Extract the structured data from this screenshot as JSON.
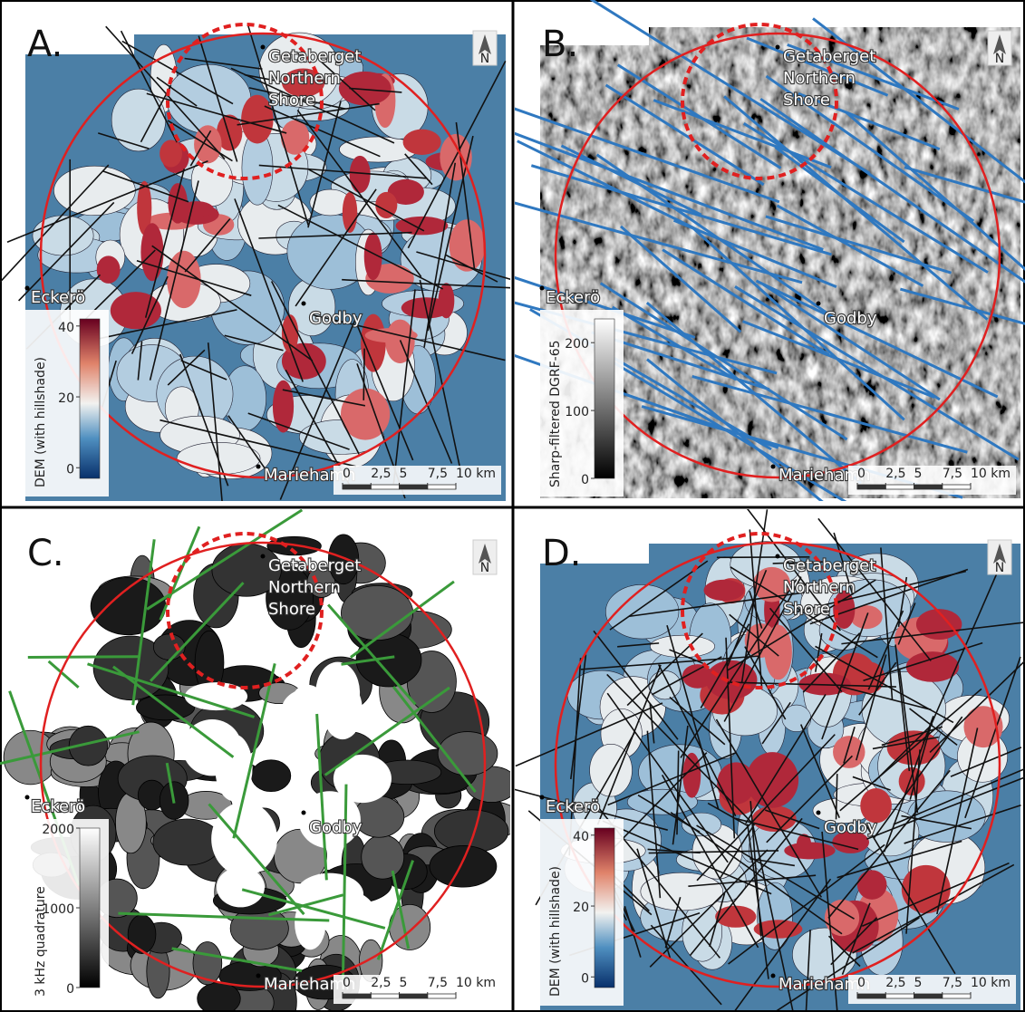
{
  "panels": [
    {
      "letter": "A.",
      "north": "N",
      "places": [
        {
          "lines": [
            "Getaberget",
            "Northern",
            "Shore"
          ]
        },
        {
          "lines": [
            "Eckerö"
          ]
        },
        {
          "lines": [
            "Godby"
          ]
        },
        {
          "lines": [
            "Mariehamn"
          ]
        }
      ],
      "colorbar": {
        "label": "DEM (with hillshade)",
        "lim": [
          -3,
          42
        ],
        "ticks": [
          0,
          20,
          40
        ]
      },
      "scale_bar": {
        "ticks": [
          0,
          {
            "value": 2.5,
            "label": "2,5"
          },
          5,
          {
            "value": 7.5,
            "label": "7,5"
          },
          {
            "value": 10,
            "label": "10 km"
          }
        ]
      }
    },
    {
      "letter": "B.",
      "north": "N",
      "places": [
        {
          "lines": [
            "Getaberget",
            "Northern",
            "Shore"
          ]
        },
        {
          "lines": [
            "Eckerö"
          ]
        },
        {
          "lines": [
            "Godby"
          ]
        },
        {
          "lines": [
            "Mariehamn"
          ]
        }
      ],
      "colorbar": {
        "label": "Sharp-filtered DGRF-65",
        "lim": [
          0,
          235
        ],
        "ticks": [
          0,
          100,
          200
        ]
      },
      "scale_bar": {
        "ticks": [
          0,
          {
            "value": 2.5,
            "label": "2,5"
          },
          5,
          {
            "value": 7.5,
            "label": "7,5"
          },
          {
            "value": 10,
            "label": "10 km"
          }
        ]
      }
    },
    {
      "letter": "C.",
      "north": "N",
      "places": [
        {
          "lines": [
            "Getaberget",
            "Northern",
            "Shore"
          ]
        },
        {
          "lines": [
            "Eckerö"
          ]
        },
        {
          "lines": [
            "Godby"
          ]
        },
        {
          "lines": [
            "Mariehamn"
          ]
        }
      ],
      "colorbar": {
        "label": "3 kHz quadrature",
        "lim": [
          0,
          2000
        ],
        "ticks": [
          0,
          1000,
          2000
        ]
      },
      "scale_bar": {
        "ticks": [
          0,
          {
            "value": 2.5,
            "label": "2,5"
          },
          5,
          {
            "value": 7.5,
            "label": "7,5"
          },
          {
            "value": 10,
            "label": "10 km"
          }
        ]
      }
    },
    {
      "letter": "D.",
      "north": "N",
      "places": [
        {
          "lines": [
            "Getaberget",
            "Northern",
            "Shore"
          ]
        },
        {
          "lines": [
            "Eckerö"
          ]
        },
        {
          "lines": [
            "Godby"
          ]
        },
        {
          "lines": [
            "Mariehamn"
          ]
        }
      ],
      "colorbar": {
        "label": "DEM (with hillshade)",
        "lim": [
          -3,
          42
        ],
        "ticks": [
          0,
          20,
          40
        ]
      },
      "scale_bar": {
        "ticks": [
          0,
          {
            "value": 2.5,
            "label": "2,5"
          },
          5,
          {
            "value": 7.5,
            "label": "7,5"
          },
          {
            "value": 10,
            "label": "10 km"
          }
        ]
      }
    }
  ]
}
